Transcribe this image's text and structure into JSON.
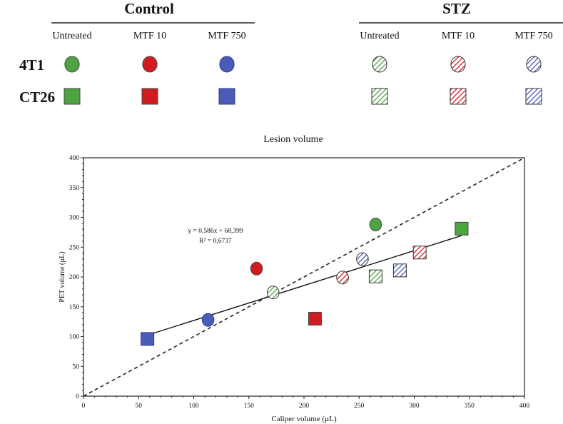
{
  "legend": {
    "groups": [
      "Control",
      "STZ"
    ],
    "treatments": [
      "Untreated",
      "MTF 10",
      "MTF 750"
    ],
    "rows": [
      "4T1",
      "CT26"
    ]
  },
  "colors": {
    "Untreated": "#4ea442",
    "MTF 10": "#d01c1f",
    "MTF 750": "#4a5cb8"
  },
  "chart_data": {
    "type": "scatter",
    "title": "Lesion volume",
    "xlabel": "Caliper volume (µL)",
    "ylabel": "PET volume (µL)",
    "xlim": [
      0,
      400
    ],
    "ylim": [
      0,
      400
    ],
    "xticks": [
      0,
      50,
      100,
      150,
      200,
      250,
      300,
      350,
      400
    ],
    "yticks": [
      0,
      50,
      100,
      150,
      200,
      250,
      300,
      350,
      400
    ],
    "annotation": [
      "y = 0,586x + 68,399",
      "R² = 0,6737"
    ],
    "fit": {
      "slope": 0.586,
      "intercept": 68.399,
      "x_range": [
        58,
        343
      ]
    },
    "identity_line": true,
    "points": [
      {
        "model": "CT26",
        "group": "Control",
        "treatment": "MTF 750",
        "x": 58,
        "y": 96
      },
      {
        "model": "4T1",
        "group": "Control",
        "treatment": "MTF 750",
        "x": 113,
        "y": 128
      },
      {
        "model": "4T1",
        "group": "Control",
        "treatment": "MTF 10",
        "x": 157,
        "y": 214
      },
      {
        "model": "4T1",
        "group": "STZ",
        "treatment": "Untreated",
        "x": 172,
        "y": 174
      },
      {
        "model": "CT26",
        "group": "Control",
        "treatment": "MTF 10",
        "x": 210,
        "y": 130
      },
      {
        "model": "4T1",
        "group": "STZ",
        "treatment": "MTF 10",
        "x": 235,
        "y": 199
      },
      {
        "model": "4T1",
        "group": "STZ",
        "treatment": "MTF 750",
        "x": 253,
        "y": 230
      },
      {
        "model": "4T1",
        "group": "Control",
        "treatment": "Untreated",
        "x": 265,
        "y": 288
      },
      {
        "model": "CT26",
        "group": "STZ",
        "treatment": "Untreated",
        "x": 265,
        "y": 201
      },
      {
        "model": "CT26",
        "group": "STZ",
        "treatment": "MTF 750",
        "x": 287,
        "y": 211
      },
      {
        "model": "CT26",
        "group": "STZ",
        "treatment": "MTF 10",
        "x": 305,
        "y": 241
      },
      {
        "model": "CT26",
        "group": "Control",
        "treatment": "Untreated",
        "x": 343,
        "y": 281
      }
    ]
  }
}
